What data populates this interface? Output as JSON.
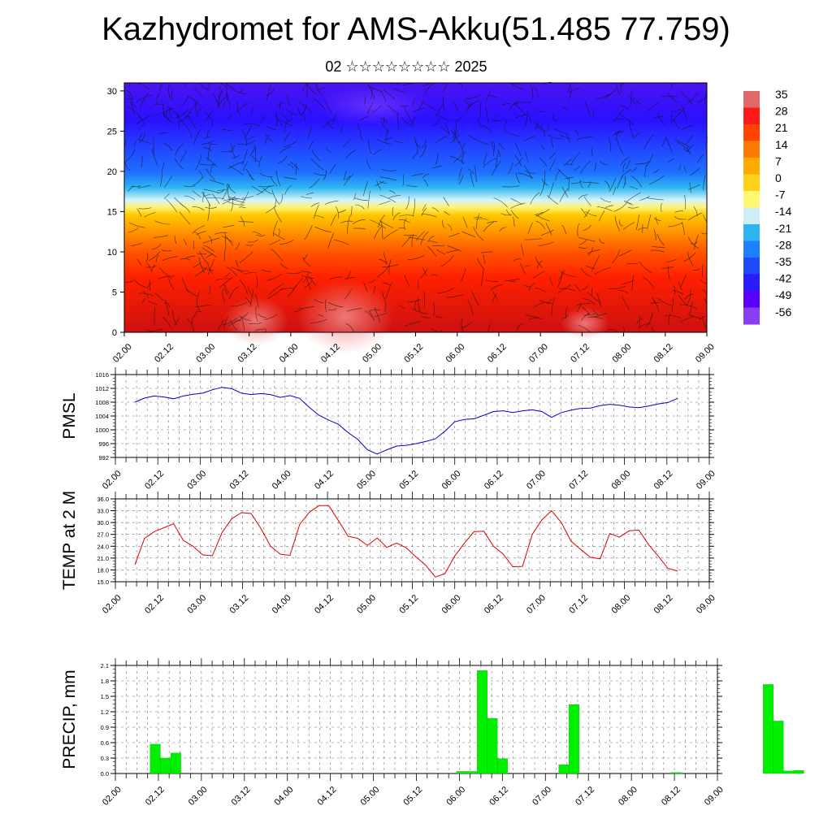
{
  "title": "Kazhydromet for AMS-Akku(51.485 77.759)",
  "subtitle": "02 ☆☆☆☆☆☆☆☆ 2025",
  "chart_data": [
    {
      "type": "heatmap",
      "description_of_field": "vertical cross-section of temperature with wind streamlines",
      "x_tick_labels": [
        "02.00",
        "02.12",
        "03.00",
        "03.12",
        "04.00",
        "04.12",
        "05.00",
        "05.12",
        "06.00",
        "06.12",
        "07.00",
        "07.12",
        "08.00",
        "08.12",
        "09.00"
      ],
      "y_ticks": [
        0,
        5,
        10,
        15,
        20,
        25,
        30
      ],
      "ylim": [
        0,
        31
      ],
      "colorbar_labels": [
        "35",
        "28",
        "21",
        "14",
        "7",
        "0",
        "-7",
        "-14",
        "-21",
        "-28",
        "-35",
        "-42",
        "-49",
        "-56"
      ],
      "colorbar_colors": [
        "#e06a6a",
        "#ff1a1a",
        "#ff4400",
        "#ff7a00",
        "#ffaa00",
        "#ffd21a",
        "#fff870",
        "#cfeef5",
        "#2fb4f0",
        "#1f80ff",
        "#2048ff",
        "#2a1cff",
        "#5a00ff",
        "#8a3cf0"
      ]
    },
    {
      "type": "line",
      "ylabel": "PMSL",
      "color": "#0000cc",
      "ylim": [
        992,
        1016
      ],
      "y_ticks": [
        "992",
        "996",
        "1000",
        "1004",
        "1008",
        "1012",
        "1016"
      ],
      "x_tick_labels": [
        "02.00",
        "02.12",
        "03.00",
        "03.12",
        "04.00",
        "04.12",
        "05.00",
        "05.12",
        "06.00",
        "06.12",
        "07.00",
        "07.12",
        "08.00",
        "08.12",
        "09.00"
      ],
      "x": [
        0,
        3,
        6,
        9,
        12,
        15,
        18,
        21,
        24,
        27,
        30,
        33,
        36,
        39,
        42,
        45,
        48,
        51,
        54,
        57,
        60,
        63,
        66,
        69,
        72,
        75,
        78,
        81,
        84,
        87,
        90,
        93,
        96,
        99,
        102,
        105,
        108,
        111,
        114,
        117,
        120,
        123,
        126,
        129,
        132,
        135,
        138,
        141,
        144,
        147,
        150,
        153,
        156,
        159,
        162,
        165,
        168
      ],
      "values": [
        1008,
        1009.2,
        1009.8,
        1009.5,
        1009.0,
        1009.8,
        1010.3,
        1010.6,
        1011.6,
        1012.3,
        1011.9,
        1010.6,
        1010.2,
        1010.5,
        1010.2,
        1009.4,
        1009.9,
        1009.1,
        1006.5,
        1004.2,
        1002.8,
        1001.6,
        999.2,
        997.2,
        994.2,
        993.0,
        994.2,
        995.3,
        995.5,
        996.0,
        996.6,
        997.4,
        999.6,
        1002.3,
        1003.0,
        1003.2,
        1004.2,
        1005.3,
        1005.5,
        1005.0,
        1005.5,
        1005.8,
        1005.3,
        1003.6,
        1005.0,
        1005.7,
        1006.2,
        1006.3,
        1007.0,
        1007.4,
        1007.1,
        1006.6,
        1006.4,
        1006.9,
        1007.5,
        1007.9,
        1009.1
      ]
    },
    {
      "type": "line",
      "ylabel": "TEMP at 2 M",
      "color": "#dd0000",
      "ylim": [
        15,
        36
      ],
      "y_ticks": [
        "15.0",
        "18.0",
        "21.0",
        "24.0",
        "27.0",
        "30.0",
        "33.0",
        "36.0"
      ],
      "x_tick_labels": [
        "02.00",
        "02.12",
        "03.00",
        "03.12",
        "04.00",
        "04.12",
        "05.00",
        "05.12",
        "06.00",
        "06.12",
        "07.00",
        "07.12",
        "08.00",
        "08.12",
        "09.00"
      ],
      "x": [
        0,
        3,
        6,
        9,
        12,
        15,
        18,
        21,
        24,
        27,
        30,
        33,
        36,
        39,
        42,
        45,
        48,
        51,
        54,
        57,
        60,
        63,
        66,
        69,
        72,
        75,
        78,
        81,
        84,
        87,
        90,
        93,
        96,
        99,
        102,
        105,
        108,
        111,
        114,
        117,
        120,
        123,
        126,
        129,
        132,
        135,
        138,
        141,
        144,
        147,
        150,
        153,
        156,
        159,
        162,
        165,
        168
      ],
      "values": [
        19.3,
        26.0,
        27.7,
        28.7,
        29.7,
        25.5,
        24.0,
        21.8,
        21.6,
        27.5,
        31.0,
        32.5,
        32.3,
        28.5,
        24.0,
        22.0,
        21.7,
        29.5,
        32.6,
        34.3,
        34.3,
        30.5,
        26.5,
        26.0,
        24.2,
        26.1,
        23.7,
        24.8,
        23.6,
        21.3,
        19.2,
        16.2,
        17.1,
        21.5,
        24.8,
        27.7,
        27.8,
        24.0,
        22.0,
        18.8,
        18.9,
        27.0,
        30.7,
        33.0,
        30.0,
        25.3,
        23.2,
        21.2,
        20.8,
        27.2,
        26.3,
        27.9,
        28.1,
        24.4,
        21.5,
        18.4,
        17.7
      ]
    },
    {
      "type": "bar",
      "ylabel": "PRECIP, mm",
      "color": "#00ee00",
      "ylim": [
        0,
        2.1
      ],
      "y_ticks": [
        "0.0",
        "0.3",
        "0.6",
        "0.9",
        "1.2",
        "1.5",
        "1.8",
        "2.1"
      ],
      "x_tick_labels": [
        "02.00",
        "02.12",
        "03.00",
        "03.12",
        "04.00",
        "04.12",
        "05.00",
        "05.12",
        "06.00",
        "06.12",
        "07.00",
        "07.12",
        "08.00",
        "08.12",
        "09.00"
      ],
      "x": [
        6,
        9,
        12,
        96,
        99,
        102,
        105,
        108,
        111,
        126,
        129,
        159,
        186,
        189,
        192,
        195,
        198
      ],
      "values": [
        0.57,
        0.3,
        0.4,
        0.04,
        0.04,
        2.0,
        1.07,
        0.29,
        0.0,
        0.17,
        1.34,
        0.02,
        1.73,
        1.02,
        0.05,
        0.06,
        0.0
      ]
    }
  ]
}
